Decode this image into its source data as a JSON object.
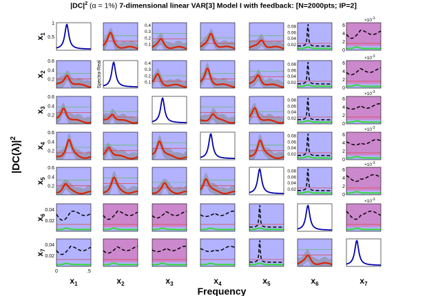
{
  "chart_data": {
    "type": "line",
    "title_parts": {
      "prefix": "|DC|",
      "sup": "2",
      "alpha": "(α = 1%)",
      "rest": "7-dimensional linear VAR[3] Model I with feedback: [N=2000pts; IP=2]"
    },
    "ylabel_main": "|DC(λ)|",
    "ylabel_sup": "2",
    "xlabel_main": "Frequency",
    "variables": [
      "x1",
      "x2",
      "x3",
      "x4",
      "x5",
      "x6",
      "x7"
    ],
    "row_labels": [
      "x1",
      "x2",
      "x3",
      "x4",
      "x5",
      "x6",
      "x7"
    ],
    "col_labels": [
      "x1",
      "x2",
      "x3",
      "x4",
      "x5",
      "x6",
      "x7"
    ],
    "xlim": [
      0,
      0.5
    ],
    "x_tick_labels": [
      "0",
      ".5"
    ],
    "diag_ylim": [
      0,
      1
    ],
    "diag_peak_freq": [
      0.15,
      0.15,
      0.15,
      0.15,
      0.15,
      0.15,
      0.15
    ],
    "row_ylim": [
      [
        0,
        1
      ],
      [
        0,
        0.6
      ],
      [
        0,
        0.6
      ],
      [
        0,
        0.6
      ],
      [
        0,
        0.6
      ],
      [
        0,
        0.05
      ],
      [
        0,
        0.05
      ]
    ],
    "row_yticks": [
      [
        "0.5",
        "1"
      ],
      [
        "0.2",
        "0.4",
        "0.6"
      ],
      [
        "0.2",
        "0.4",
        "0.6"
      ],
      [
        "0.2",
        "0.4",
        "0.6"
      ],
      [
        "0.2",
        "0.4",
        "0.6"
      ],
      [
        "0.02",
        "0.04"
      ],
      [
        "0.02",
        "0.04"
      ]
    ],
    "col2_yticks": [
      "0.1",
      "0.2",
      "0.3",
      "0.4"
    ],
    "col2_row2_ylabel": "Spectra-Real",
    "col2_row3_ylabel": "log",
    "col3_row3_yticks": [
      "0.2",
      "0.4",
      "0.6",
      "0.8",
      "1"
    ],
    "col6_yticks": [
      "0.02",
      "0.04",
      "0.06",
      "0.08"
    ],
    "col7_yticks": [
      "0",
      "2",
      "4",
      "6"
    ],
    "col7_exponent": "×10",
    "col7_exponent_sup": "-3",
    "col5_row4_yticks": [
      "0.2",
      "0.4",
      "0.6",
      "0.8",
      "1"
    ],
    "row6_yticks_magenta": [
      "0",
      "2",
      "4",
      "6",
      "8"
    ],
    "row7_col4_yticks": [
      "0",
      "5",
      "10",
      "15"
    ],
    "row6_col4_yticks": [
      "0",
      "5",
      "10"
    ],
    "row7_col5_yticks": [
      "0.02",
      "0.04"
    ],
    "significant_pairs_note": "red curve = significant DC; black dashed = non-significant; green = threshold",
    "panels_significant": [
      [
        false,
        true,
        true,
        true,
        true,
        false,
        false
      ],
      [
        true,
        false,
        true,
        true,
        true,
        false,
        false
      ],
      [
        true,
        true,
        false,
        true,
        true,
        false,
        false
      ],
      [
        true,
        true,
        true,
        false,
        true,
        false,
        false
      ],
      [
        true,
        true,
        true,
        true,
        false,
        false,
        false
      ],
      [
        false,
        false,
        false,
        false,
        false,
        false,
        false
      ],
      [
        false,
        false,
        false,
        false,
        false,
        true,
        false
      ]
    ],
    "colors": {
      "diag": "#0000aa",
      "significant": "#dd2200",
      "nonsignificant": "#000000",
      "threshold": "#33dd33",
      "bg_blue": "#b2b2ff",
      "bg_magenta": "#cc88cc",
      "ci_band": "#888888"
    }
  }
}
